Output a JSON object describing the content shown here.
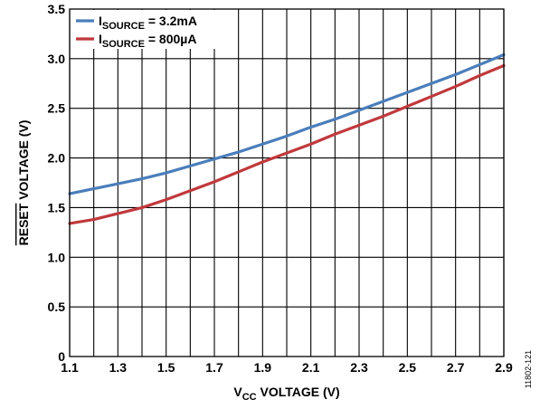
{
  "chart_data": {
    "type": "line",
    "title": "",
    "xlabel": {
      "prefix": "V",
      "sub": "CC",
      "rest": " VOLTAGE (V)"
    },
    "ylabel": {
      "overlined": "RESET",
      "rest": " VOLTAGE (V)"
    },
    "xlim": [
      1.1,
      2.9
    ],
    "ylim": [
      0,
      3.5
    ],
    "x_ticks": [
      1.1,
      1.2,
      1.3,
      1.4,
      1.5,
      1.6,
      1.7,
      1.8,
      1.9,
      2.0,
      2.1,
      2.2,
      2.3,
      2.4,
      2.5,
      2.6,
      2.7,
      2.8,
      2.9
    ],
    "x_tick_labels": [
      "1.1",
      "1.3",
      "1.5",
      "1.7",
      "1.9",
      "2.1",
      "2.3",
      "2.5",
      "2.7",
      "2.9"
    ],
    "y_ticks": [
      0,
      0.5,
      1.0,
      1.5,
      2.0,
      2.5,
      3.0,
      3.5
    ],
    "y_tick_labels": [
      "0",
      "0.5",
      "1.0",
      "1.5",
      "2.0",
      "2.5",
      "3.0",
      "3.5"
    ],
    "grid": true,
    "legend_position": "top-left",
    "series": [
      {
        "name": "3.2mA",
        "legend": {
          "prefix": "I",
          "sub": "SOURCE",
          "rest": " = 3.2mA"
        },
        "color": "#4a7ebb",
        "x": [
          1.1,
          1.2,
          1.3,
          1.4,
          1.5,
          1.6,
          1.7,
          1.8,
          1.9,
          2.0,
          2.1,
          2.2,
          2.3,
          2.4,
          2.5,
          2.6,
          2.7,
          2.8,
          2.9
        ],
        "values": [
          1.64,
          1.69,
          1.74,
          1.79,
          1.85,
          1.92,
          1.99,
          2.06,
          2.14,
          2.22,
          2.31,
          2.39,
          2.48,
          2.57,
          2.66,
          2.75,
          2.84,
          2.94,
          3.04
        ]
      },
      {
        "name": "800µA",
        "legend": {
          "prefix": "I",
          "sub": "SOURCE",
          "rest": " = 800µA"
        },
        "color": "#c0393c",
        "x": [
          1.1,
          1.2,
          1.3,
          1.4,
          1.5,
          1.6,
          1.7,
          1.8,
          1.9,
          2.0,
          2.1,
          2.2,
          2.3,
          2.4,
          2.5,
          2.6,
          2.7,
          2.8,
          2.9
        ],
        "values": [
          1.34,
          1.38,
          1.44,
          1.5,
          1.58,
          1.67,
          1.76,
          1.86,
          1.96,
          2.05,
          2.14,
          2.24,
          2.33,
          2.42,
          2.52,
          2.62,
          2.72,
          2.83,
          2.93
        ]
      }
    ],
    "figure_id": "11802-121"
  }
}
